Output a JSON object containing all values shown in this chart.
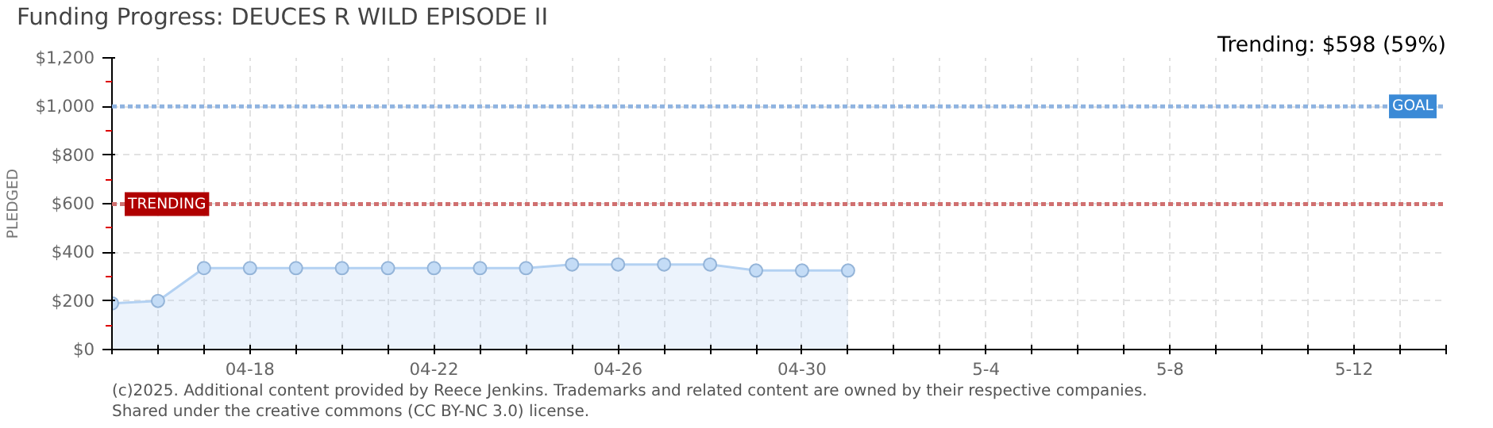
{
  "chart_data": {
    "type": "area",
    "title": "Funding Progress: DEUCES R WILD EPISODE II",
    "subtitle": "Trending: $598 (59%)",
    "ylabel": "PLEDGED",
    "x": [
      "2025-04-15",
      "2025-04-16",
      "2025-04-17",
      "2025-04-18",
      "2025-04-19",
      "2025-04-20",
      "2025-04-21",
      "2025-04-22",
      "2025-04-23",
      "2025-04-24",
      "2025-04-25",
      "2025-04-26",
      "2025-04-27",
      "2025-04-28",
      "2025-04-29",
      "2025-04-30",
      "2025-05-01"
    ],
    "series": [
      {
        "color": "#b3d1f2",
        "values": [
          190,
          200,
          335,
          335,
          335,
          335,
          335,
          335,
          335,
          335,
          350,
          350,
          350,
          350,
          325,
          325,
          325
        ]
      }
    ],
    "marker": "circle",
    "grid": true,
    "xlim": [
      "2025-04-15",
      "2025-05-14"
    ],
    "xticks": [
      {
        "value": "2025-04-15",
        "label": null
      },
      {
        "value": "2025-04-16",
        "label": null
      },
      {
        "value": "2025-04-17",
        "label": null
      },
      {
        "value": "2025-04-18",
        "label": "04-18"
      },
      {
        "value": "2025-04-19",
        "label": null
      },
      {
        "value": "2025-04-20",
        "label": null
      },
      {
        "value": "2025-04-21",
        "label": null
      },
      {
        "value": "2025-04-22",
        "label": "04-22"
      },
      {
        "value": "2025-04-23",
        "label": null
      },
      {
        "value": "2025-04-24",
        "label": null
      },
      {
        "value": "2025-04-25",
        "label": null
      },
      {
        "value": "2025-04-26",
        "label": "04-26"
      },
      {
        "value": "2025-04-27",
        "label": null
      },
      {
        "value": "2025-04-28",
        "label": null
      },
      {
        "value": "2025-04-29",
        "label": null
      },
      {
        "value": "2025-04-30",
        "label": "04-30"
      },
      {
        "value": "2025-05-01",
        "label": null
      },
      {
        "value": "2025-05-02",
        "label": null
      },
      {
        "value": "2025-05-03",
        "label": null
      },
      {
        "value": "2025-05-04",
        "label": "5-4"
      },
      {
        "value": "2025-05-05",
        "label": null
      },
      {
        "value": "2025-05-06",
        "label": null
      },
      {
        "value": "2025-05-07",
        "label": null
      },
      {
        "value": "2025-05-08",
        "label": "5-8"
      },
      {
        "value": "2025-05-09",
        "label": null
      },
      {
        "value": "2025-05-10",
        "label": null
      },
      {
        "value": "2025-05-11",
        "label": null
      },
      {
        "value": "2025-05-12",
        "label": "5-12"
      },
      {
        "value": "2025-05-13",
        "label": null
      },
      {
        "value": "2025-05-14",
        "label": null
      }
    ],
    "ylim": [
      0,
      1200
    ],
    "yticks": [
      {
        "value": 0,
        "label": "$0"
      },
      {
        "value": 100,
        "label": null
      },
      {
        "value": 200,
        "label": "$200"
      },
      {
        "value": 300,
        "label": null
      },
      {
        "value": 400,
        "label": "$400"
      },
      {
        "value": 500,
        "label": null
      },
      {
        "value": 600,
        "label": "$600"
      },
      {
        "value": 700,
        "label": null
      },
      {
        "value": 800,
        "label": "$800"
      },
      {
        "value": 900,
        "label": null
      },
      {
        "value": 1000,
        "label": "$1,000"
      },
      {
        "value": 1100,
        "label": null
      },
      {
        "value": 1200,
        "label": "$1,200"
      }
    ],
    "ref_lines": [
      {
        "axis": "y",
        "value": 1000,
        "label": "GOAL",
        "color": "#8fb3e0",
        "line_style": "dotted"
      },
      {
        "axis": "y",
        "value": 598,
        "label": "TRENDING",
        "color": "#d07070",
        "line_style": "dotted"
      }
    ],
    "annotations": [
      "(c)2025. Additional content provided by Reece Jenkins. Trademarks and related content are owned by their respective companies.",
      "Shared under the creative commons (CC BY-NC 3.0) license."
    ]
  }
}
